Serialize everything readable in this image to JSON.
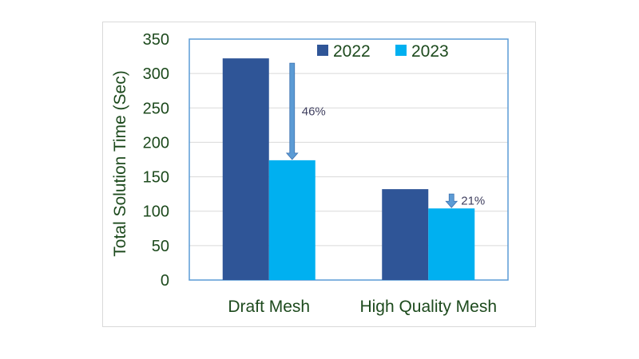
{
  "chart_data": {
    "type": "bar",
    "categories": [
      "Draft Mesh",
      "High Quality Mesh"
    ],
    "series": [
      {
        "name": "2022",
        "values": [
          322,
          132
        ],
        "color": "#2f5597"
      },
      {
        "name": "2023",
        "values": [
          174,
          104
        ],
        "color": "#00b0f0"
      }
    ],
    "title": "",
    "xlabel": "",
    "ylabel": "Total Solution Time (Sec)",
    "ylim": [
      0,
      350
    ],
    "yticks": [
      0,
      50,
      100,
      150,
      200,
      250,
      300,
      350
    ],
    "grid": true,
    "legend_position": "top-right",
    "annotations": [
      {
        "category": "Draft Mesh",
        "text": "46%"
      },
      {
        "category": "High Quality Mesh",
        "text": "21%"
      }
    ],
    "arrow_color": "#5b9bd5"
  }
}
